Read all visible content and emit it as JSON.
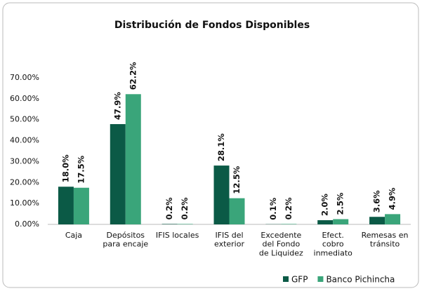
{
  "chart_data": {
    "type": "bar",
    "title": "Distribución de Fondos Disponibles",
    "categories": [
      "Caja",
      "Depósitos\npara encaje",
      "IFIS locales",
      "IFIS del\nexterior",
      "Excedente\ndel Fondo\nde Liquidez",
      "Efect.\ncobro\ninmediato",
      "Remesas en\ntránsito"
    ],
    "series": [
      {
        "name": "GFP",
        "color": "#0b5a46",
        "values": [
          18.0,
          47.9,
          0.2,
          28.1,
          0.1,
          2.0,
          3.6
        ],
        "value_labels": [
          "18.0%",
          "47.9%",
          "0.2%",
          "28.1%",
          "0.1%",
          "2.0%",
          "3.6%"
        ]
      },
      {
        "name": "Banco Pichincha",
        "color": "#3aa57a",
        "values": [
          17.5,
          62.2,
          0.2,
          12.5,
          0.2,
          2.5,
          4.9
        ],
        "value_labels": [
          "17.5%",
          "62.2%",
          "0.2%",
          "12.5%",
          "0.2%",
          "2.5%",
          "4.9%"
        ]
      }
    ],
    "ylim": [
      0,
      70
    ],
    "yticks": [
      {
        "value": 0,
        "label": "0.00%"
      },
      {
        "value": 10,
        "label": "10.00%"
      },
      {
        "value": 20,
        "label": "20.00%"
      },
      {
        "value": 30,
        "label": "30.00%"
      },
      {
        "value": 40,
        "label": "40.00%"
      },
      {
        "value": 50,
        "label": "50.00%"
      },
      {
        "value": 60,
        "label": "60.00%"
      },
      {
        "value": 70,
        "label": "70.00%"
      }
    ],
    "grid": false,
    "legend": "bottom-right"
  }
}
